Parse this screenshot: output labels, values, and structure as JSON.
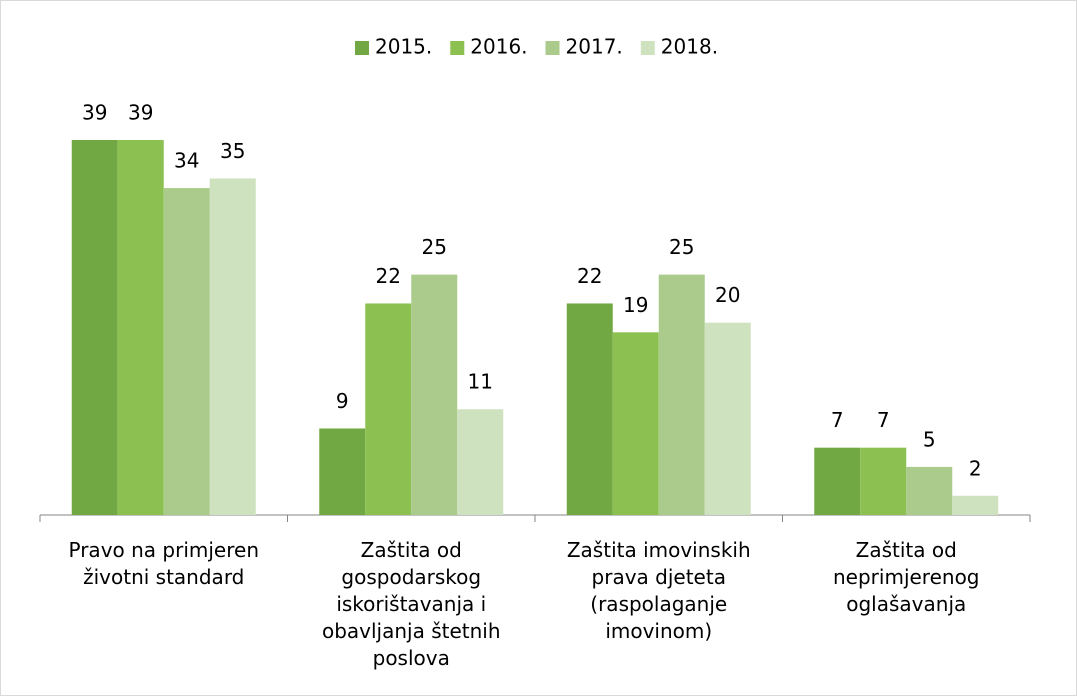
{
  "chart_data": {
    "type": "bar",
    "categories": [
      "Pravo na primjeren životni standard",
      "Zaštita od gospodarskog iskorištavanja i obavljanja štetnih poslova",
      "Zaštita imovinskih prava djeteta (raspolaganje imovinom)",
      "Zaštita od neprimjerenog oglašavanja"
    ],
    "series": [
      {
        "name": "2015.",
        "color": "#72a843",
        "values": [
          39,
          9,
          22,
          7
        ]
      },
      {
        "name": "2016.",
        "color": "#8cc152",
        "values": [
          39,
          22,
          19,
          7
        ]
      },
      {
        "name": "2017.",
        "color": "#aacb8c",
        "values": [
          34,
          25,
          25,
          5
        ]
      },
      {
        "name": "2018.",
        "color": "#cfe2bf",
        "values": [
          35,
          11,
          20,
          2
        ]
      }
    ],
    "legend": "top"
  }
}
